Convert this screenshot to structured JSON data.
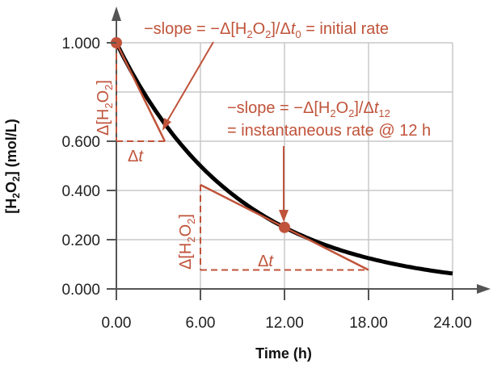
{
  "chart_data": {
    "type": "line",
    "title": "",
    "xlabel": "Time (h)",
    "ylabel_parts": [
      "[H",
      "2",
      "O",
      "2",
      "] (mol/L)"
    ],
    "xlim": [
      0,
      24
    ],
    "ylim": [
      0,
      1
    ],
    "x_ticks": [
      0,
      6,
      12,
      18,
      24
    ],
    "x_tick_labels": [
      "0.00",
      "6.00",
      "12.00",
      "18.00",
      "24.00"
    ],
    "y_ticks": [
      0,
      0.2,
      0.4,
      0.6,
      1.0
    ],
    "y_tick_labels": [
      "0.000",
      "0.200",
      "0.400",
      "0.600",
      "1.000"
    ],
    "y_gridlines": [
      0.2,
      0.4,
      0.6,
      0.8,
      1.0
    ],
    "grid": true,
    "series": [
      {
        "name": "[H2O2]",
        "function": "exponential decay",
        "initial": 1.0,
        "half_life_h": 6,
        "x_range": [
          0,
          24
        ]
      }
    ],
    "points": [
      {
        "x": 0,
        "y": 1.0
      },
      {
        "x": 12,
        "y": 0.25
      }
    ],
    "tangents": [
      {
        "at_x": 0,
        "from": [
          0,
          1.0
        ],
        "to": [
          3.46,
          0.6
        ]
      },
      {
        "at_x": 12,
        "from": [
          6,
          0.423
        ],
        "to": [
          18,
          0.077
        ]
      }
    ],
    "annotations": {
      "initial": {
        "a": "−slope = −Δ[H",
        "s1": "2",
        "b": "O",
        "s2": "2",
        "c": "]/Δ",
        "t": "t",
        "sub": "0",
        "d": " = initial rate"
      },
      "instant": {
        "a": "−slope = −Δ[H",
        "s1": "2",
        "b": "O",
        "s2": "2",
        "c": "]/Δ",
        "t": "t",
        "sub": "12",
        "line2": "= instantaneous rate @ 12 h"
      },
      "delta_conc": {
        "a": "Δ[H",
        "s1": "2",
        "b": "O",
        "s2": "2",
        "c": "]"
      },
      "delta_t": {
        "a": "Δ",
        "t": "t"
      }
    },
    "colors": {
      "curve": "#000000",
      "annotation": "#c0533a",
      "grid": "#c8c8c8",
      "axis": "#555555"
    }
  }
}
